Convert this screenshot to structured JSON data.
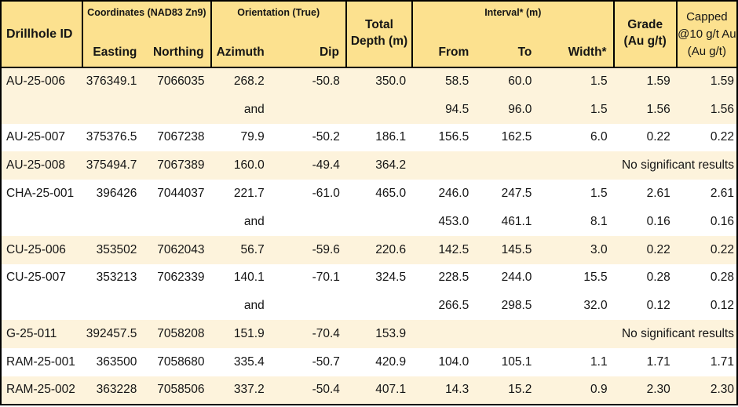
{
  "colors": {
    "header_bg": "#FCE18F",
    "row_alt_bg": "#FDF3DC",
    "row_bg": "#FFFFFF",
    "border": "#000000",
    "text": "#151515"
  },
  "table": {
    "header": {
      "drillhole_id": "Drillhole ID",
      "coordinates_group": "Coordinates (NAD83 Zn9)",
      "orientation_group": "Orientation (True)",
      "interval_group": "Interval* (m)",
      "total_depth_lines": [
        "Total",
        "Depth (m)"
      ],
      "grade_lines": [
        "Grade",
        "(Au g/t)"
      ],
      "capped_lines": [
        "Capped",
        "@10 g/t Au",
        "(Au g/t)"
      ],
      "easting": "Easting",
      "northing": "Northing",
      "azimuth": "Azimuth",
      "dip": "Dip",
      "from": "From",
      "to": "To",
      "width": "Width*"
    },
    "and_label": "and",
    "no_results_label": "No significant results",
    "rows": [
      {
        "id": "AU-25-006",
        "easting": "376349.1",
        "northing": "7066035",
        "azimuth": "268.2",
        "dip": "-50.8",
        "total_depth": "350.0",
        "from": "58.5",
        "to": "60.0",
        "width": "1.5",
        "grade": "1.59",
        "capped": "1.59",
        "shade": "cream"
      },
      {
        "id": "",
        "easting": "",
        "northing": "",
        "azimuth": "and",
        "dip": "",
        "total_depth": "",
        "from": "94.5",
        "to": "96.0",
        "width": "1.5",
        "grade": "1.56",
        "capped": "1.56",
        "shade": "cream"
      },
      {
        "id": "AU-25-007",
        "easting": "375376.5",
        "northing": "7067238",
        "azimuth": "79.9",
        "dip": "-50.2",
        "total_depth": "186.1",
        "from": "156.5",
        "to": "162.5",
        "width": "6.0",
        "grade": "0.22",
        "capped": "0.22",
        "shade": "white"
      },
      {
        "id": "AU-25-008",
        "easting": "375494.7",
        "northing": "7067389",
        "azimuth": "160.0",
        "dip": "-49.4",
        "total_depth": "364.2",
        "no_results": true,
        "shade": "cream"
      },
      {
        "id": "CHA-25-001",
        "easting": "396426",
        "northing": "7044037",
        "azimuth": "221.7",
        "dip": "-61.0",
        "total_depth": "465.0",
        "from": "246.0",
        "to": "247.5",
        "width": "1.5",
        "grade": "2.61",
        "capped": "2.61",
        "shade": "white"
      },
      {
        "id": "",
        "easting": "",
        "northing": "",
        "azimuth": "and",
        "dip": "",
        "total_depth": "",
        "from": "453.0",
        "to": "461.1",
        "width": "8.1",
        "grade": "0.16",
        "capped": "0.16",
        "shade": "white"
      },
      {
        "id": "CU-25-006",
        "easting": "353502",
        "northing": "7062043",
        "azimuth": "56.7",
        "dip": "-59.6",
        "total_depth": "220.6",
        "from": "142.5",
        "to": "145.5",
        "width": "3.0",
        "grade": "0.22",
        "capped": "0.22",
        "shade": "cream"
      },
      {
        "id": "CU-25-007",
        "easting": "353213",
        "northing": "7062339",
        "azimuth": "140.1",
        "dip": "-70.1",
        "total_depth": "324.5",
        "from": "228.5",
        "to": "244.0",
        "width": "15.5",
        "grade": "0.28",
        "capped": "0.28",
        "shade": "white"
      },
      {
        "id": "",
        "easting": "",
        "northing": "",
        "azimuth": "and",
        "dip": "",
        "total_depth": "",
        "from": "266.5",
        "to": "298.5",
        "width": "32.0",
        "grade": "0.12",
        "capped": "0.12",
        "shade": "white"
      },
      {
        "id": "G-25-011",
        "easting": "392457.5",
        "northing": "7058208",
        "azimuth": "151.9",
        "dip": "-70.4",
        "total_depth": "153.9",
        "no_results": true,
        "shade": "cream"
      },
      {
        "id": "RAM-25-001",
        "easting": "363500",
        "northing": "7058680",
        "azimuth": "335.4",
        "dip": "-50.7",
        "total_depth": "420.9",
        "from": "104.0",
        "to": "105.1",
        "width": "1.1",
        "grade": "1.71",
        "capped": "1.71",
        "shade": "white"
      },
      {
        "id": "RAM-25-002",
        "easting": "363228",
        "northing": "7058506",
        "azimuth": "337.2",
        "dip": "-50.4",
        "total_depth": "407.1",
        "from": "14.3",
        "to": "15.2",
        "width": "0.9",
        "grade": "2.30",
        "capped": "2.30",
        "shade": "cream"
      }
    ]
  }
}
